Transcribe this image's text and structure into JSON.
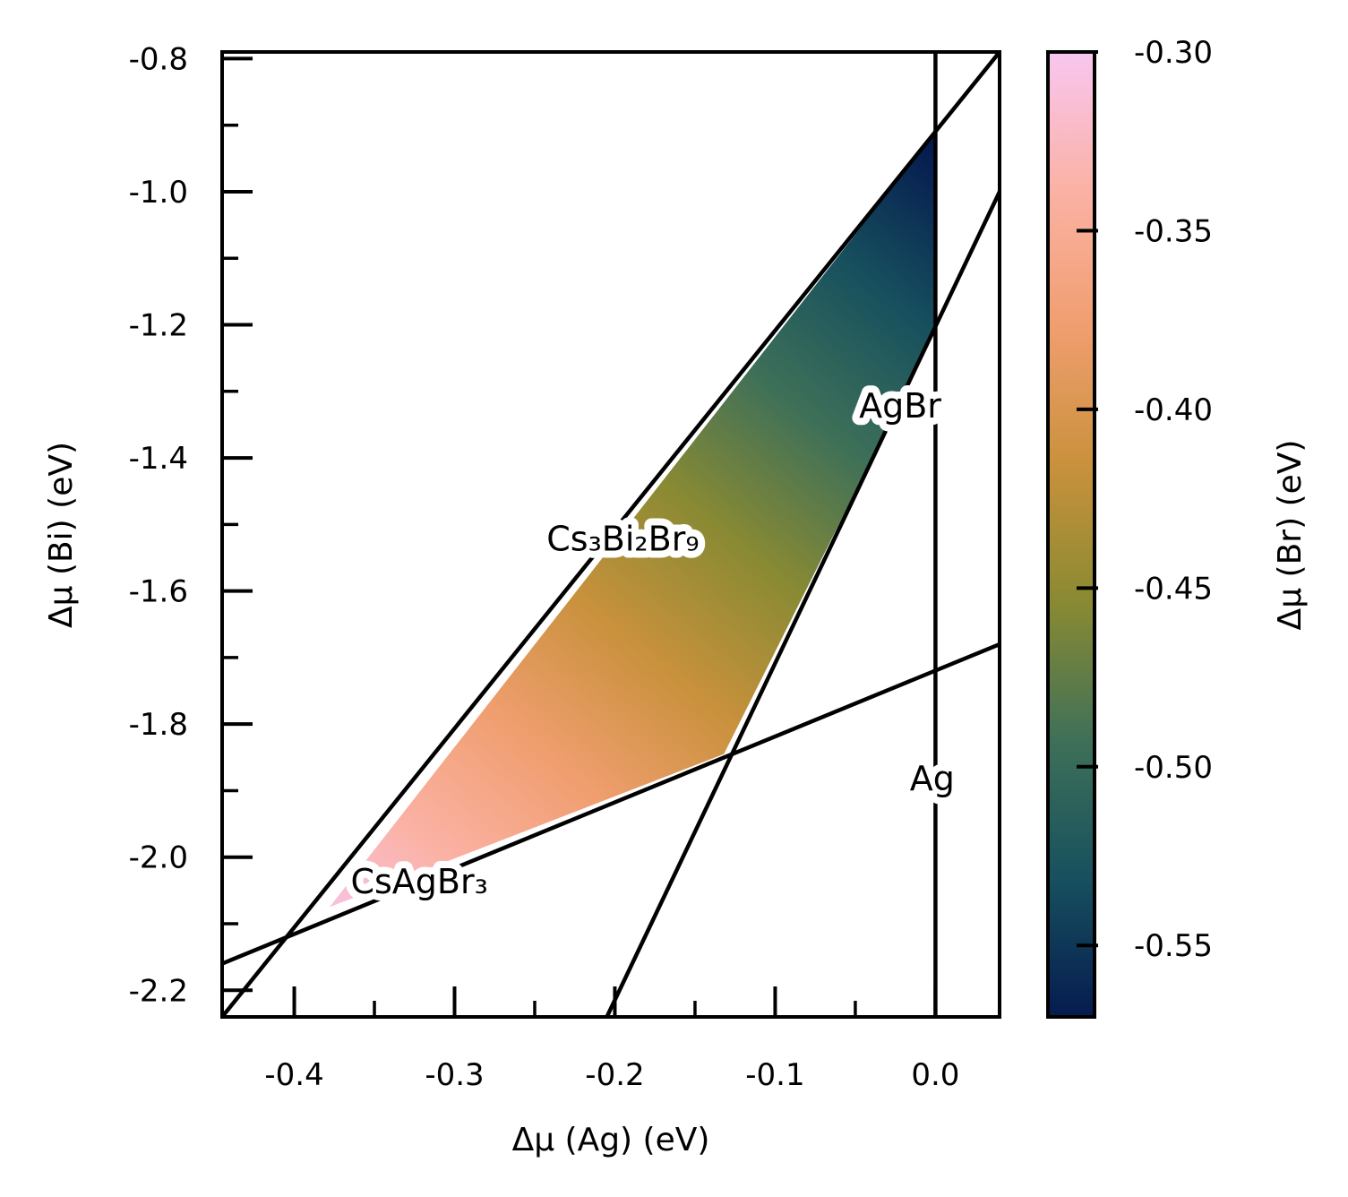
{
  "chart_data": {
    "type": "area",
    "xlabel": "Δμ (Ag) (eV)",
    "ylabel": "Δμ (Bi) (eV)",
    "colorbar_label": "Δμ (Br) (eV)",
    "xlim": [
      -0.445,
      0.04
    ],
    "ylim": [
      -2.24,
      -0.79
    ],
    "x_ticks": [
      -0.4,
      -0.3,
      -0.2,
      -0.1,
      0.0
    ],
    "x_tick_labels": [
      "-0.4",
      "-0.3",
      "-0.2",
      "-0.1",
      "0.0"
    ],
    "x_minor_ticks": [
      -0.35,
      -0.25,
      -0.15,
      -0.05
    ],
    "y_ticks": [
      -2.2,
      -2.0,
      -1.8,
      -1.6,
      -1.4,
      -1.2,
      -1.0,
      -0.8
    ],
    "y_tick_labels": [
      "-2.2",
      "-2.0",
      "-1.8",
      "-1.6",
      "-1.4",
      "-1.2",
      "-1.0",
      "-0.8"
    ],
    "y_minor_ticks": [
      -2.1,
      -1.9,
      -1.7,
      -1.5,
      -1.3,
      -1.1,
      -0.9
    ],
    "colorbar_range": [
      -0.57,
      -0.3
    ],
    "colorbar_ticks": [
      -0.55,
      -0.5,
      -0.45,
      -0.4,
      -0.35,
      -0.3
    ],
    "colorbar_tick_labels": [
      "-0.55",
      "-0.50",
      "-0.45",
      "-0.40",
      "-0.35",
      "-0.30"
    ],
    "colormap": [
      "#051b4f",
      "#17505e",
      "#3e7058",
      "#898a33",
      "#c9913c",
      "#f09e6f",
      "#fbb2a5",
      "#f8c6f0"
    ],
    "stability_region": [
      [
        -0.378,
        -2.075
      ],
      [
        -0.132,
        -1.845
      ],
      [
        0.0,
        -1.21
      ],
      [
        0.0,
        -0.91
      ]
    ],
    "boundary_lines": [
      {
        "name": "Cs₃Bi₂Br₉",
        "points": [
          [
            -0.445,
            -2.24
          ],
          [
            0.04,
            -0.79
          ]
        ]
      },
      {
        "name": "AgBr",
        "points": [
          [
            -0.205,
            -2.24
          ],
          [
            0.04,
            -1.0
          ]
        ]
      },
      {
        "name": "CsAgBr₃",
        "points": [
          [
            -0.445,
            -2.16
          ],
          [
            0.04,
            -1.68
          ]
        ]
      },
      {
        "name": "Ag",
        "points": [
          [
            0.0,
            -2.24
          ],
          [
            0.0,
            -0.79
          ]
        ]
      }
    ],
    "labels": [
      {
        "text": "AgBr",
        "x": -0.022,
        "y": -1.325
      },
      {
        "text": "Cs₃Bi₂Br₉",
        "x": -0.195,
        "y": -1.525
      },
      {
        "text": "Ag",
        "x": -0.002,
        "y": -1.885
      },
      {
        "text": "CsAgBr₃",
        "x": -0.322,
        "y": -2.04
      }
    ]
  }
}
